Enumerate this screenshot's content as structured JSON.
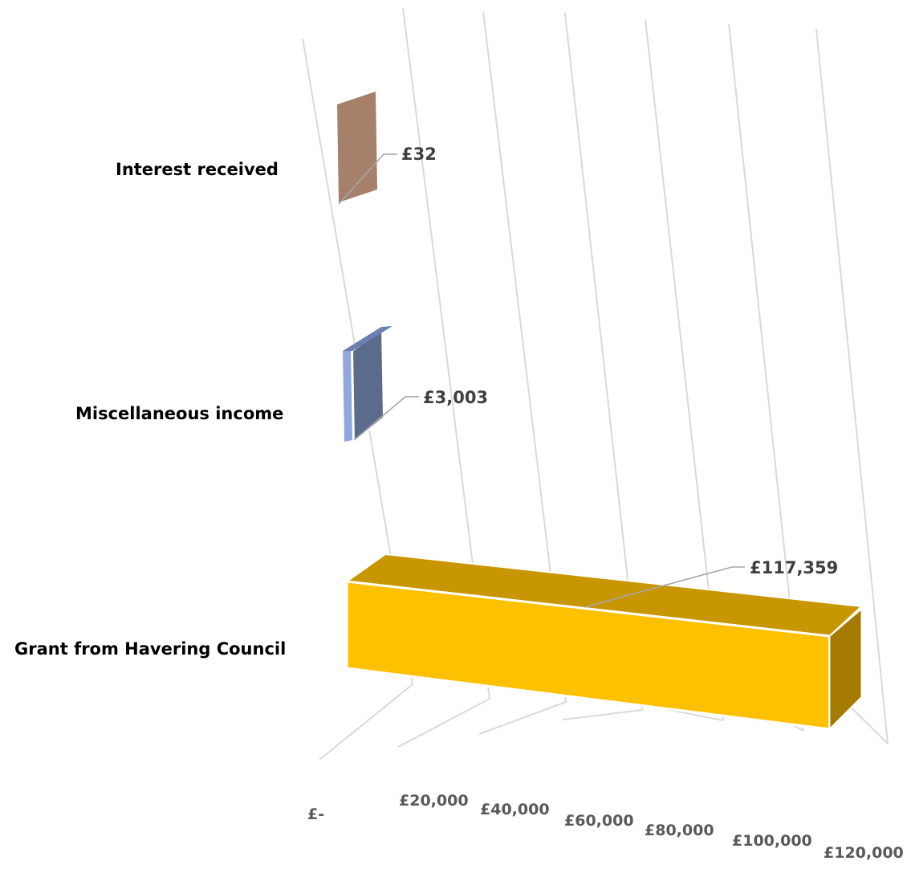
{
  "chart_data": {
    "type": "bar",
    "orientation": "horizontal",
    "perspective": "3d",
    "categories": [
      "Interest received",
      "Miscellaneous income",
      "Grant from Havering Council"
    ],
    "values": [
      32,
      3003,
      117359
    ],
    "data_labels": [
      "£32",
      "£3,003",
      "£117,359"
    ],
    "x_ticks": [
      0,
      20000,
      40000,
      60000,
      80000,
      100000,
      120000
    ],
    "x_tick_labels": [
      "£-",
      "£20,000",
      "£40,000",
      "£60,000",
      "£80,000",
      "£100,000",
      "£120,000"
    ],
    "xlim": [
      0,
      120000
    ],
    "title": "",
    "xlabel": "",
    "ylabel": "",
    "grid": true,
    "legend": "none",
    "colors": {
      "Interest received": "#a5806a",
      "Miscellaneous income": "#5b6b8c",
      "Miscellaneous income side": "#8fa8dc",
      "Grant from Havering Council": "#ffc000",
      "Grant from Havering Council top": "#c89600",
      "Grant from Havering Council side": "#a47a00",
      "gridline": "#d9d9d9",
      "leader_line": "#a6a6a6"
    }
  }
}
